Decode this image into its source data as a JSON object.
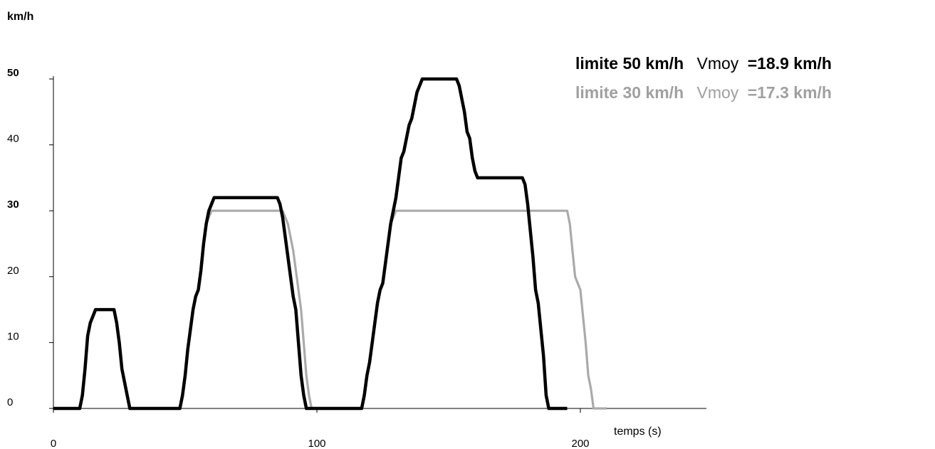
{
  "chart_data": {
    "type": "line",
    "title": "",
    "xlabel": "temps (s)",
    "ylabel": "km/h",
    "xlim": [
      0,
      250
    ],
    "ylim": [
      0,
      50
    ],
    "x_ticks": [
      "0",
      "100",
      "200"
    ],
    "y_ticks": [
      {
        "label": "0",
        "bold": false
      },
      {
        "label": "10",
        "bold": false
      },
      {
        "label": "20",
        "bold": false
      },
      {
        "label": "30",
        "bold": true
      },
      {
        "label": "40",
        "bold": false
      },
      {
        "label": "50",
        "bold": true
      }
    ],
    "grid": false,
    "legend_position": "top-right",
    "series": [
      {
        "name": "limite 50 km/h",
        "vmoy_label": "Vmoy",
        "vmoy_value": "=18.9 km/h",
        "color": "#000000",
        "x": [
          0,
          10,
          11,
          12,
          13,
          14,
          15,
          16,
          23,
          24,
          25,
          26,
          27,
          28,
          29,
          30,
          48,
          49,
          50,
          51,
          52,
          53,
          54,
          55,
          56,
          57,
          58,
          59,
          60,
          61,
          62,
          85,
          86,
          87,
          88,
          89,
          90,
          91,
          92,
          93,
          94,
          95,
          96,
          97,
          117,
          118,
          119,
          120,
          121,
          122,
          123,
          124,
          125,
          126,
          127,
          128,
          129,
          130,
          131,
          132,
          133,
          134,
          135,
          136,
          137,
          138,
          139,
          140,
          141,
          142,
          143,
          144,
          145,
          146,
          153,
          154,
          155,
          156,
          157,
          158,
          159,
          160,
          161,
          162,
          163,
          164,
          165,
          178,
          179,
          180,
          181,
          182,
          183,
          184,
          185,
          186,
          187,
          188,
          189,
          190,
          191,
          195
        ],
        "y": [
          0,
          0,
          2,
          6,
          11,
          13,
          14,
          15,
          15,
          13,
          10,
          6,
          4,
          2,
          0,
          0,
          0,
          2,
          5,
          9,
          12,
          15,
          17,
          18,
          21,
          25,
          28,
          30,
          31,
          32,
          32,
          32,
          31,
          29,
          26,
          23,
          20,
          17,
          15,
          10,
          5,
          2,
          0,
          0,
          0,
          2,
          5,
          7,
          10,
          13,
          16,
          18,
          19,
          22,
          25,
          28,
          30,
          32,
          35,
          38,
          39,
          41,
          43,
          44,
          46,
          48,
          49,
          50,
          50,
          50,
          50,
          50,
          50,
          50,
          50,
          49,
          47,
          45,
          42,
          41,
          38,
          36,
          35,
          35,
          35,
          35,
          35,
          35,
          34,
          31,
          27,
          23,
          18,
          16,
          12,
          8,
          2,
          0,
          0,
          0,
          0,
          0
        ]
      },
      {
        "name": "limite 30 km/h",
        "vmoy_label": "Vmoy",
        "vmoy_value": "=17.3 km/h",
        "color": "#aaaaaa",
        "x": [
          0,
          10,
          11,
          12,
          13,
          14,
          15,
          16,
          23,
          24,
          25,
          26,
          27,
          28,
          29,
          30,
          48,
          49,
          50,
          51,
          52,
          53,
          54,
          55,
          56,
          57,
          58,
          59,
          60,
          61,
          87,
          88,
          89,
          90,
          91,
          92,
          93,
          94,
          95,
          96,
          97,
          98,
          117,
          118,
          119,
          120,
          121,
          122,
          123,
          124,
          125,
          126,
          127,
          128,
          129,
          130,
          131,
          132,
          195,
          196,
          197,
          198,
          199,
          200,
          201,
          202,
          203,
          204,
          205,
          206,
          210
        ],
        "y": [
          0,
          0,
          2,
          6,
          11,
          13,
          14,
          15,
          15,
          13,
          10,
          6,
          4,
          2,
          0,
          0,
          0,
          2,
          5,
          9,
          12,
          15,
          17,
          18,
          21,
          25,
          28,
          29,
          30,
          30,
          30,
          29,
          28,
          26,
          24,
          21,
          18,
          15,
          10,
          5,
          2,
          0,
          0,
          2,
          5,
          7,
          10,
          13,
          16,
          18,
          19,
          22,
          25,
          28,
          29,
          30,
          30,
          30,
          30,
          28,
          24,
          20,
          19,
          18,
          14,
          10,
          5,
          3,
          0,
          0,
          0
        ]
      }
    ]
  }
}
